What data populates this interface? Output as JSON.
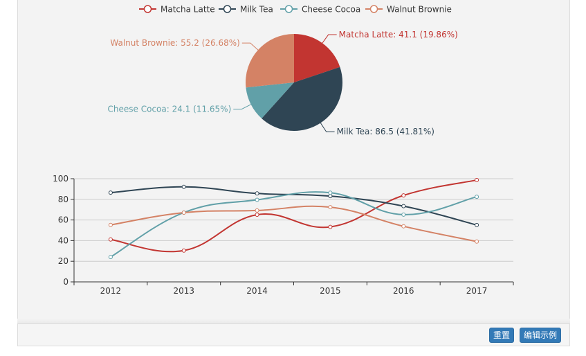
{
  "chart_data": {
    "type": "pie+line",
    "colors": [
      "#c23531",
      "#2f4554",
      "#61a0a8",
      "#d48265"
    ],
    "legend": [
      "Matcha Latte",
      "Milk Tea",
      "Cheese Cocoa",
      "Walnut Brownie"
    ],
    "legend_placement": "top-center",
    "pie": {
      "slices": [
        {
          "name": "Matcha Latte",
          "value": 41.1,
          "label": "Matcha Latte: 41.1 (19.86%)"
        },
        {
          "name": "Milk Tea",
          "value": 86.5,
          "label": "Milk Tea: 86.5 (41.81%)"
        },
        {
          "name": "Cheese Cocoa",
          "value": 24.1,
          "label": "Cheese Cocoa: 24.1 (11.65%)"
        },
        {
          "name": "Walnut Brownie",
          "value": 55.2,
          "label": "Walnut Brownie: 55.2 (26.68%)"
        }
      ]
    },
    "line": {
      "categories": [
        "2012",
        "2013",
        "2014",
        "2015",
        "2016",
        "2017"
      ],
      "ylim": [
        0,
        100
      ],
      "yticks": [
        "0",
        "20",
        "40",
        "60",
        "80",
        "100"
      ],
      "grid": true,
      "smooth": true,
      "series": [
        {
          "name": "Matcha Latte",
          "values": [
            41.1,
            30.4,
            65.1,
            53.3,
            83.8,
            98.7
          ]
        },
        {
          "name": "Milk Tea",
          "values": [
            86.5,
            92.1,
            85.7,
            83.1,
            73.4,
            55.1
          ]
        },
        {
          "name": "Cheese Cocoa",
          "values": [
            24.1,
            67.2,
            79.5,
            86.4,
            65.2,
            82.5
          ]
        },
        {
          "name": "Walnut Brownie",
          "values": [
            55.2,
            67.1,
            69.2,
            72.4,
            53.9,
            39.1
          ]
        }
      ]
    }
  },
  "toolbar": {
    "reset_label": "重置",
    "edit_label": "编辑示例"
  }
}
